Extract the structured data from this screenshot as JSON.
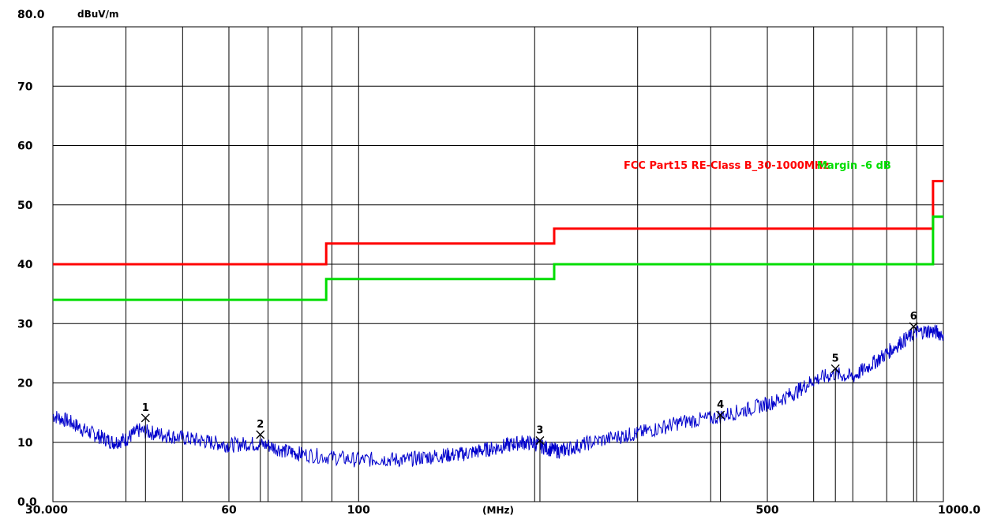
{
  "chart_data": {
    "type": "line",
    "ylabel": "dBuV/m",
    "xunit": "(MHz)",
    "x_scale": "log",
    "xlim": [
      30,
      1000
    ],
    "ylim": [
      0,
      80
    ],
    "grid": true,
    "x_tick_labels": [
      {
        "value": 30,
        "label": "30.000"
      },
      {
        "value": 60,
        "label": "60"
      },
      {
        "value": 100,
        "label": "100"
      },
      {
        "value": 500,
        "label": "500"
      },
      {
        "value": 1000,
        "label": "1000.0"
      }
    ],
    "x_gridlines": [
      40,
      50,
      60,
      70,
      80,
      90,
      100,
      200,
      300,
      400,
      500,
      600,
      700,
      800,
      900
    ],
    "y_tick_labels": [
      {
        "value": 0,
        "label": "0.0"
      },
      {
        "value": 10,
        "label": "10"
      },
      {
        "value": 20,
        "label": "20"
      },
      {
        "value": 30,
        "label": "30"
      },
      {
        "value": 40,
        "label": "40"
      },
      {
        "value": 50,
        "label": "50"
      },
      {
        "value": 60,
        "label": "60"
      },
      {
        "value": 70,
        "label": "70"
      },
      {
        "value": 80,
        "label": "80.0"
      }
    ],
    "legend": [
      {
        "text": "FCC Part15 RE-Class B_30-1000MHz",
        "color": "#ff0000"
      },
      {
        "text": "Margin -6 dB",
        "color": "#00dd00"
      }
    ],
    "legend_position": "upper-right",
    "series": [
      {
        "name": "FCC Part15 RE-Class B_30-1000MHz",
        "color": "#ff0000",
        "x": [
          30,
          88,
          88,
          216,
          216,
          960,
          960,
          1000
        ],
        "y": [
          40.0,
          40.0,
          43.5,
          43.5,
          46.0,
          46.0,
          54.0,
          54.0
        ]
      },
      {
        "name": "Margin -6 dB",
        "color": "#00dd00",
        "x": [
          30,
          88,
          88,
          216,
          216,
          960,
          960,
          1000
        ],
        "y": [
          34.0,
          34.0,
          37.5,
          37.5,
          40.0,
          40.0,
          48.0,
          48.0
        ]
      },
      {
        "color": "#0000cc",
        "x": [
          30,
          32,
          34,
          36,
          38,
          40,
          42,
          45,
          48,
          52,
          56,
          60,
          65,
          70,
          75,
          80,
          90,
          100,
          110,
          120,
          130,
          140,
          150,
          160,
          170,
          180,
          190,
          200,
          210,
          220,
          230,
          250,
          280,
          300,
          330,
          360,
          400,
          440,
          480,
          520,
          560,
          600,
          650,
          700,
          750,
          800,
          850,
          900,
          950,
          1000
        ],
        "y": [
          14.5,
          13.5,
          12.0,
          11.0,
          10.0,
          10.5,
          12.0,
          11.5,
          11.0,
          10.5,
          10.0,
          9.5,
          9.8,
          9.5,
          8.5,
          8.0,
          7.5,
          7.0,
          7.2,
          7.0,
          7.5,
          7.8,
          8.0,
          8.5,
          9.0,
          9.5,
          10.0,
          9.8,
          9.0,
          8.5,
          9.0,
          10.0,
          11.0,
          11.5,
          12.5,
          13.5,
          14.0,
          15.0,
          16.0,
          17.0,
          18.5,
          20.5,
          21.5,
          21.0,
          23.0,
          25.0,
          27.0,
          28.5,
          28.8,
          28.2
        ]
      }
    ],
    "markers": [
      {
        "label": "1",
        "x": 43.2,
        "y": 14.1
      },
      {
        "label": "2",
        "x": 67.9,
        "y": 11.3
      },
      {
        "label": "3",
        "x": 204.2,
        "y": 10.3
      },
      {
        "label": "4",
        "x": 415.7,
        "y": 14.6
      },
      {
        "label": "5",
        "x": 653.6,
        "y": 22.4
      },
      {
        "label": "6",
        "x": 889.3,
        "y": 29.5
      }
    ]
  }
}
